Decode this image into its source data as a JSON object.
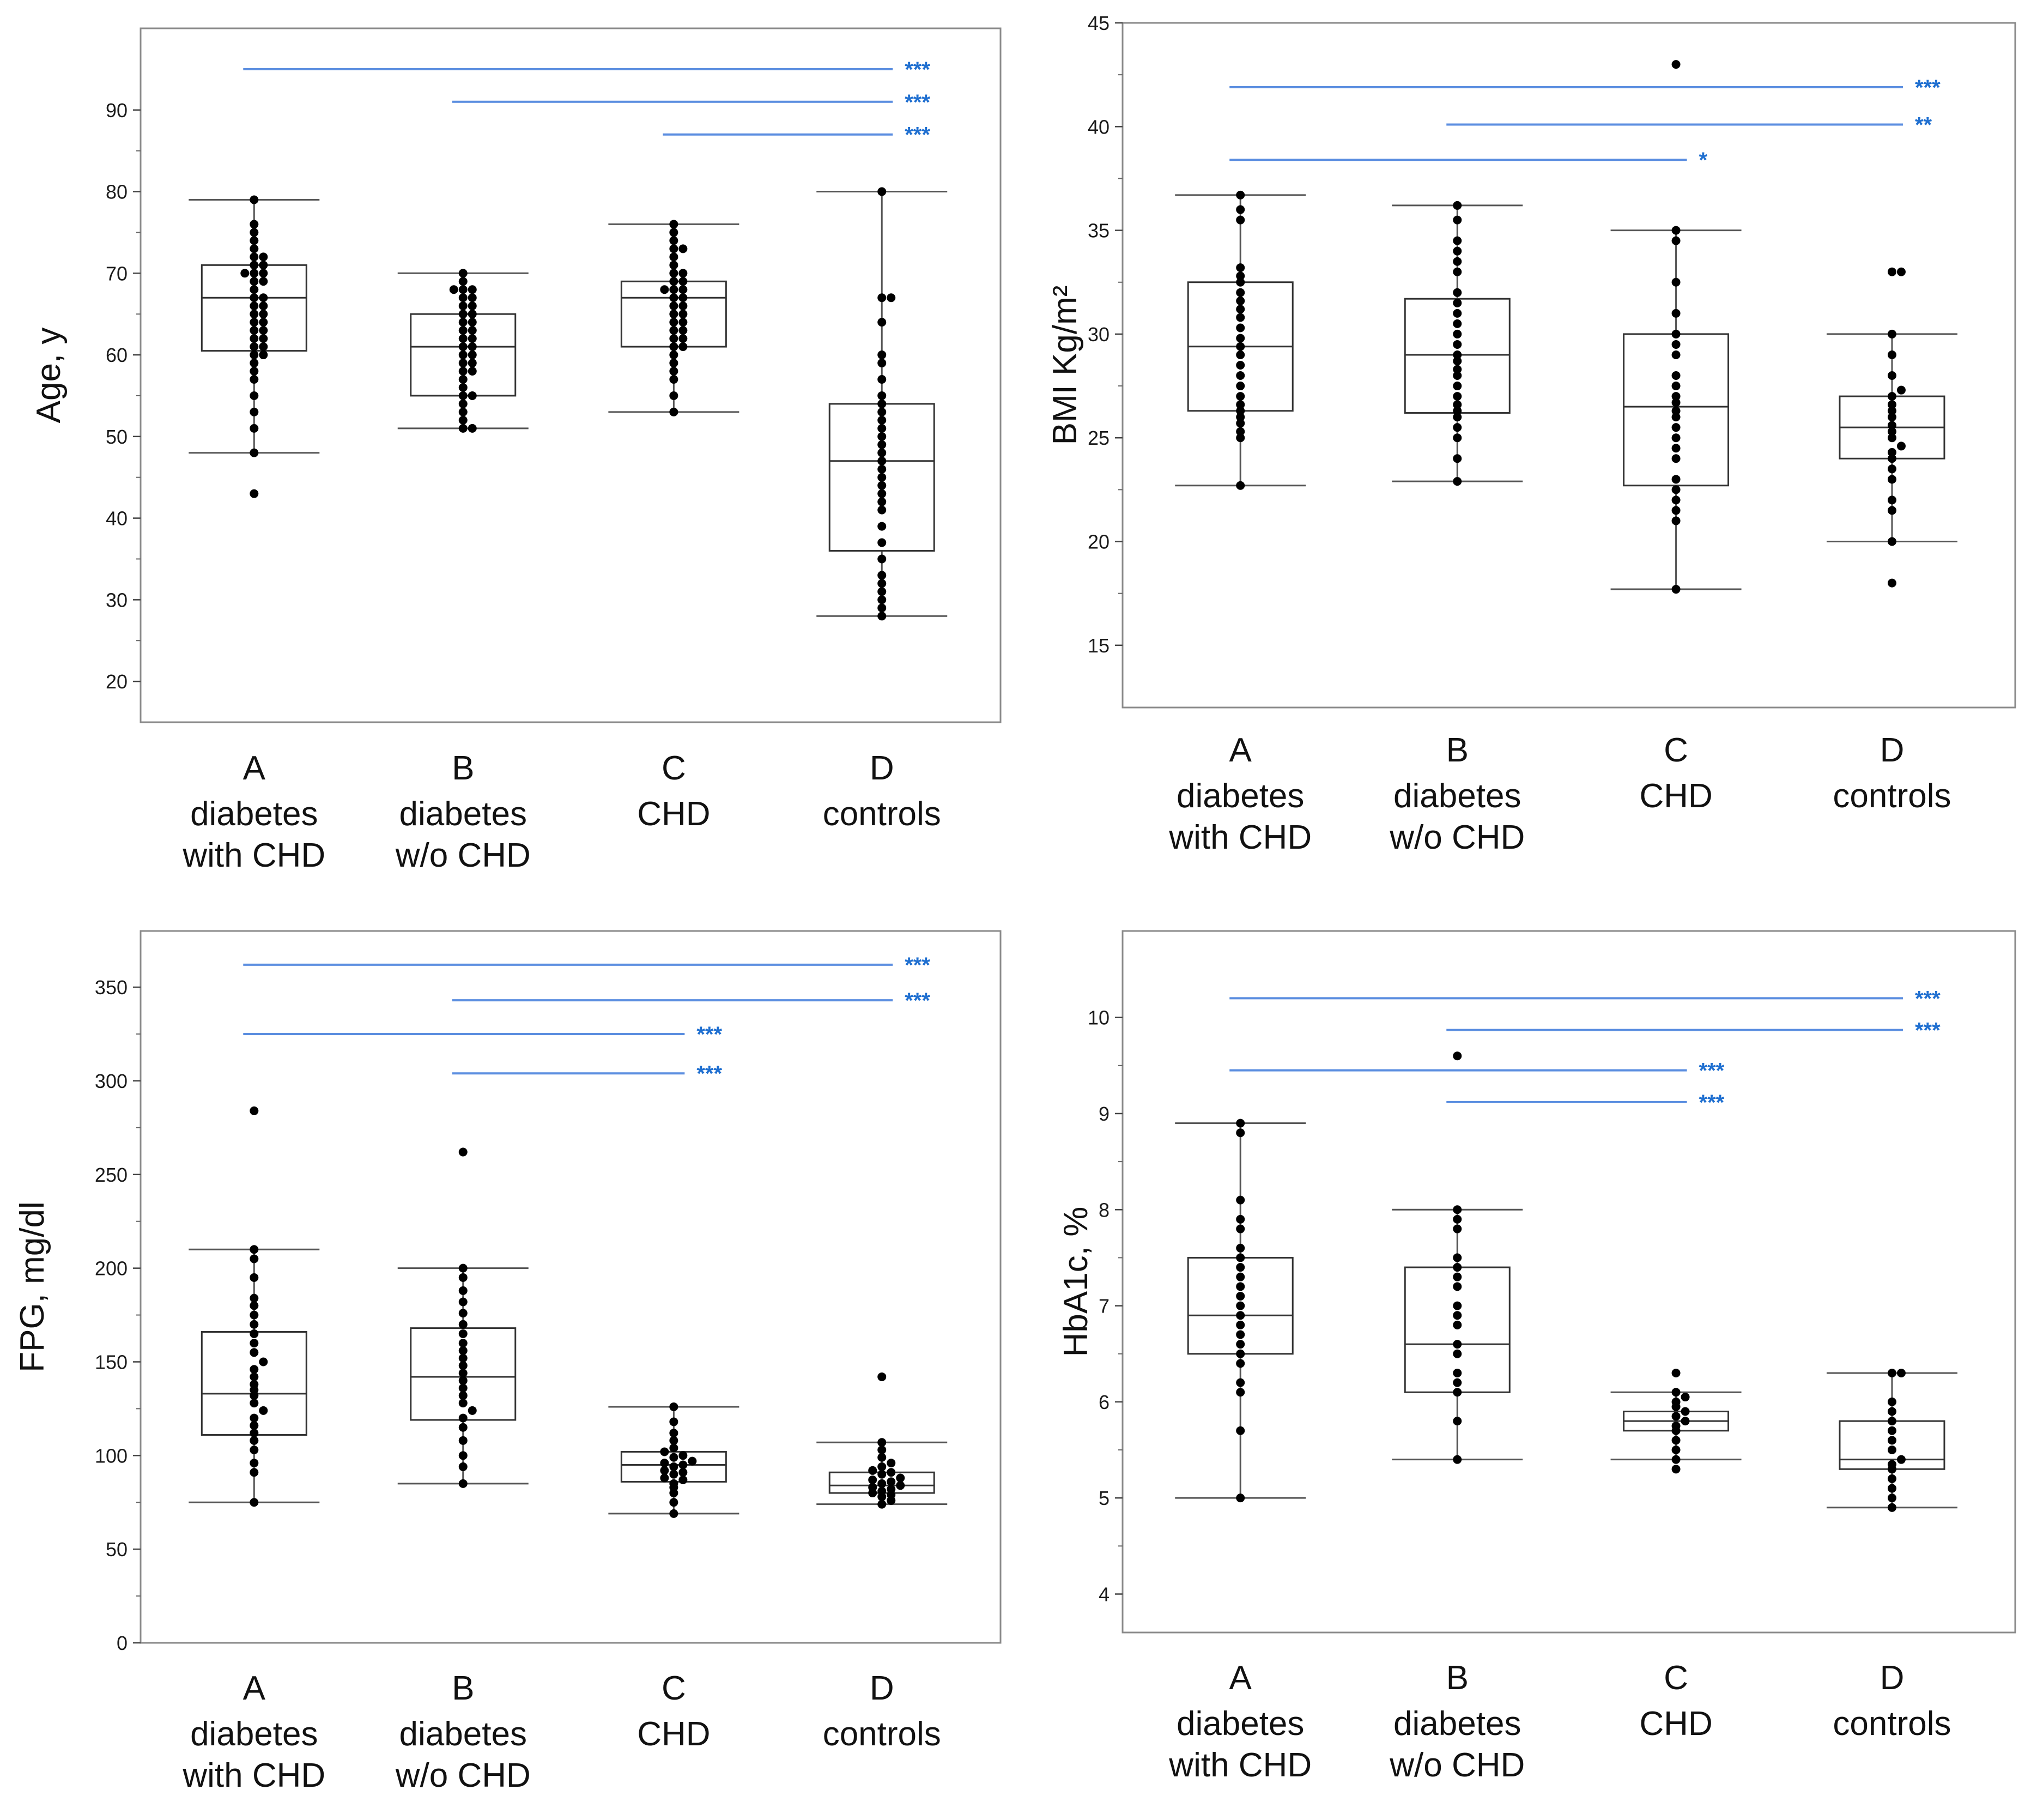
{
  "colors": {
    "significance": "#5b8ee0",
    "sig_text": "#1f6fd0",
    "points": "#000000",
    "frame": "#8a8a8a",
    "whisker": "#555555"
  },
  "chart_data": [
    {
      "type": "box",
      "ylabel": "Age, y",
      "ylim": [
        15,
        100
      ],
      "yticks": [
        20,
        30,
        40,
        50,
        60,
        70,
        80,
        90
      ],
      "categories": [
        {
          "code": "A",
          "line1": "diabetes",
          "line2": "with CHD"
        },
        {
          "code": "B",
          "line1": "diabetes",
          "line2": "w/o CHD"
        },
        {
          "code": "C",
          "line1": "CHD",
          "line2": ""
        },
        {
          "code": "D",
          "line1": "controls",
          "line2": ""
        }
      ],
      "boxes": [
        {
          "wlo": 48,
          "q1": 60.5,
          "med": 67,
          "q3": 71,
          "whi": 79
        },
        {
          "wlo": 51,
          "q1": 55,
          "med": 61,
          "q3": 65,
          "whi": 70
        },
        {
          "wlo": 53,
          "q1": 61,
          "med": 67,
          "q3": 69,
          "whi": 76
        },
        {
          "wlo": 28,
          "q1": 36,
          "med": 47,
          "q3": 54,
          "whi": 80
        }
      ],
      "points": [
        [
          43,
          48,
          51,
          53,
          55,
          57,
          58,
          59,
          60,
          60,
          61,
          61,
          62,
          62,
          63,
          63,
          64,
          64,
          65,
          65,
          66,
          66,
          67,
          67,
          68,
          69,
          69,
          70,
          70,
          70,
          71,
          71,
          72,
          72,
          73,
          74,
          75,
          76,
          79
        ],
        [
          51,
          51,
          52,
          53,
          54,
          55,
          55,
          56,
          57,
          58,
          58,
          59,
          59,
          60,
          60,
          61,
          61,
          62,
          62,
          63,
          63,
          64,
          64,
          65,
          65,
          66,
          66,
          67,
          67,
          68,
          68,
          68,
          69,
          70
        ],
        [
          53,
          55,
          57,
          58,
          59,
          60,
          61,
          61,
          62,
          62,
          63,
          63,
          64,
          64,
          65,
          65,
          66,
          66,
          67,
          67,
          68,
          68,
          68,
          69,
          69,
          70,
          70,
          71,
          72,
          73,
          73,
          74,
          75,
          76
        ],
        [
          28,
          29,
          30,
          31,
          32,
          33,
          35,
          37,
          39,
          41,
          42,
          43,
          44,
          45,
          46,
          47,
          48,
          49,
          50,
          51,
          52,
          53,
          54,
          55,
          57,
          59,
          60,
          64,
          67,
          67,
          80
        ]
      ],
      "sig": [
        {
          "from": 0,
          "to": 3,
          "y": 95,
          "label": "***"
        },
        {
          "from": 1,
          "to": 3,
          "y": 91,
          "label": "***"
        },
        {
          "from": 2,
          "to": 3,
          "y": 87,
          "label": "***"
        }
      ]
    },
    {
      "type": "box",
      "ylabel": "BMI Kg/m²",
      "ylim": [
        12,
        45
      ],
      "yticks": [
        15,
        20,
        25,
        30,
        35,
        40,
        45
      ],
      "categories": [
        {
          "code": "A",
          "line1": "diabetes",
          "line2": "with CHD"
        },
        {
          "code": "B",
          "line1": "diabetes",
          "line2": "w/o CHD"
        },
        {
          "code": "C",
          "line1": "CHD",
          "line2": ""
        },
        {
          "code": "D",
          "line1": "controls",
          "line2": ""
        }
      ],
      "boxes": [
        {
          "wlo": 22.7,
          "q1": 26.3,
          "med": 29.4,
          "q3": 32.5,
          "whi": 36.7
        },
        {
          "wlo": 22.9,
          "q1": 26.2,
          "med": 29,
          "q3": 31.7,
          "whi": 36.2
        },
        {
          "wlo": 17.7,
          "q1": 22.7,
          "med": 26.5,
          "q3": 30,
          "whi": 35
        },
        {
          "wlo": 20,
          "q1": 24,
          "med": 25.5,
          "q3": 27,
          "whi": 30
        }
      ],
      "points": [
        [
          22.7,
          25,
          25.3,
          25.7,
          26,
          26.3,
          26.6,
          27,
          27.5,
          28,
          28.5,
          29,
          29.4,
          29.8,
          30.3,
          30.8,
          31.2,
          31.6,
          32,
          32.5,
          32.8,
          33.2,
          35.5,
          36,
          36.7
        ],
        [
          22.9,
          24,
          25,
          25.5,
          26,
          26.3,
          26.6,
          27,
          27.5,
          28,
          28.3,
          28.7,
          29,
          29.5,
          30,
          30.5,
          31,
          31.5,
          32,
          33,
          33.5,
          34,
          34.5,
          35.5,
          36.2
        ],
        [
          17.7,
          21,
          21.5,
          22,
          22.5,
          23,
          24,
          24.5,
          25,
          25.5,
          26,
          26.3,
          26.7,
          27,
          27.5,
          28,
          29,
          29.5,
          30,
          31,
          32.5,
          34.5,
          35,
          43
        ],
        [
          18,
          20,
          21.5,
          22,
          23,
          23.5,
          24,
          24.3,
          24.6,
          25,
          25.3,
          25.6,
          26,
          26.3,
          26.6,
          27,
          27.3,
          28,
          29,
          30,
          33,
          33
        ]
      ],
      "sig": [
        {
          "from": 0,
          "to": 3,
          "y": 41.9,
          "label": "***"
        },
        {
          "from": 1,
          "to": 3,
          "y": 40.1,
          "label": "**"
        },
        {
          "from": 0,
          "to": 2,
          "y": 38.4,
          "label": "*"
        }
      ]
    },
    {
      "type": "box",
      "ylabel": "FPG, mg/dl",
      "ylim": [
        0,
        380
      ],
      "yticks": [
        0,
        50,
        100,
        150,
        200,
        250,
        300,
        350
      ],
      "categories": [
        {
          "code": "A",
          "line1": "diabetes",
          "line2": "with CHD"
        },
        {
          "code": "B",
          "line1": "diabetes",
          "line2": "w/o CHD"
        },
        {
          "code": "C",
          "line1": "CHD",
          "line2": ""
        },
        {
          "code": "D",
          "line1": "controls",
          "line2": ""
        }
      ],
      "boxes": [
        {
          "wlo": 75,
          "q1": 111,
          "med": 133,
          "q3": 166,
          "whi": 210
        },
        {
          "wlo": 85,
          "q1": 119,
          "med": 142,
          "q3": 168,
          "whi": 200
        },
        {
          "wlo": 69,
          "q1": 86,
          "med": 95,
          "q3": 102,
          "whi": 126
        },
        {
          "wlo": 74,
          "q1": 80,
          "med": 84,
          "q3": 91,
          "whi": 107
        }
      ],
      "points": [
        [
          75,
          91,
          96,
          103,
          108,
          112,
          116,
          120,
          124,
          128,
          132,
          135,
          138,
          142,
          146,
          150,
          155,
          160,
          165,
          170,
          175,
          180,
          184,
          195,
          205,
          210,
          284
        ],
        [
          85,
          94,
          100,
          108,
          115,
          120,
          124,
          128,
          132,
          136,
          140,
          144,
          148,
          152,
          156,
          160,
          165,
          170,
          176,
          182,
          188,
          195,
          200,
          262
        ],
        [
          69,
          75,
          80,
          83,
          85,
          87,
          88,
          90,
          91,
          92,
          94,
          95,
          96,
          97,
          99,
          100,
          102,
          104,
          108,
          112,
          118,
          126
        ],
        [
          74,
          76,
          78,
          79,
          80,
          81,
          82,
          83,
          84,
          85,
          86,
          87,
          88,
          90,
          91,
          92,
          94,
          96,
          99,
          103,
          107,
          142
        ]
      ],
      "sig": [
        {
          "from": 0,
          "to": 3,
          "y": 362,
          "label": "***"
        },
        {
          "from": 1,
          "to": 3,
          "y": 343,
          "label": "***"
        },
        {
          "from": 0,
          "to": 2,
          "y": 325,
          "label": "***"
        },
        {
          "from": 1,
          "to": 2,
          "y": 304,
          "label": "***"
        }
      ]
    },
    {
      "type": "box",
      "ylabel": "HbA1c, %",
      "ylim": [
        3.6,
        10.9
      ],
      "yticks": [
        4,
        5,
        6,
        7,
        8,
        9,
        10
      ],
      "categories": [
        {
          "code": "A",
          "line1": "diabetes",
          "line2": "with CHD"
        },
        {
          "code": "B",
          "line1": "diabetes",
          "line2": "w/o CHD"
        },
        {
          "code": "C",
          "line1": "CHD",
          "line2": ""
        },
        {
          "code": "D",
          "line1": "controls",
          "line2": ""
        }
      ],
      "boxes": [
        {
          "wlo": 5,
          "q1": 6.5,
          "med": 6.9,
          "q3": 7.5,
          "whi": 8.9
        },
        {
          "wlo": 5.4,
          "q1": 6.1,
          "med": 6.6,
          "q3": 7.4,
          "whi": 8
        },
        {
          "wlo": 5.4,
          "q1": 5.7,
          "med": 5.8,
          "q3": 5.9,
          "whi": 6.1
        },
        {
          "wlo": 4.9,
          "q1": 5.3,
          "med": 5.4,
          "q3": 5.8,
          "whi": 6.3
        }
      ],
      "points": [
        [
          5,
          5.7,
          6.1,
          6.2,
          6.4,
          6.5,
          6.6,
          6.7,
          6.8,
          6.9,
          7,
          7.1,
          7.2,
          7.3,
          7.4,
          7.5,
          7.6,
          7.8,
          7.9,
          8.1,
          8.8,
          8.9
        ],
        [
          5.4,
          5.8,
          6.1,
          6.2,
          6.3,
          6.5,
          6.6,
          6.8,
          6.9,
          7,
          7.2,
          7.3,
          7.4,
          7.5,
          7.8,
          7.9,
          8,
          9.6
        ],
        [
          5.3,
          5.4,
          5.5,
          5.6,
          5.7,
          5.75,
          5.8,
          5.85,
          5.9,
          5.95,
          6,
          6.05,
          6.1,
          6.3
        ],
        [
          4.9,
          5,
          5.1,
          5.2,
          5.3,
          5.35,
          5.4,
          5.5,
          5.6,
          5.7,
          5.8,
          5.9,
          6,
          6.3,
          6.3
        ]
      ],
      "sig": [
        {
          "from": 0,
          "to": 3,
          "y": 10.2,
          "label": "***"
        },
        {
          "from": 1,
          "to": 3,
          "y": 9.87,
          "label": "***"
        },
        {
          "from": 0,
          "to": 2,
          "y": 9.45,
          "label": "***"
        },
        {
          "from": 1,
          "to": 2,
          "y": 9.12,
          "label": "***"
        }
      ]
    }
  ]
}
